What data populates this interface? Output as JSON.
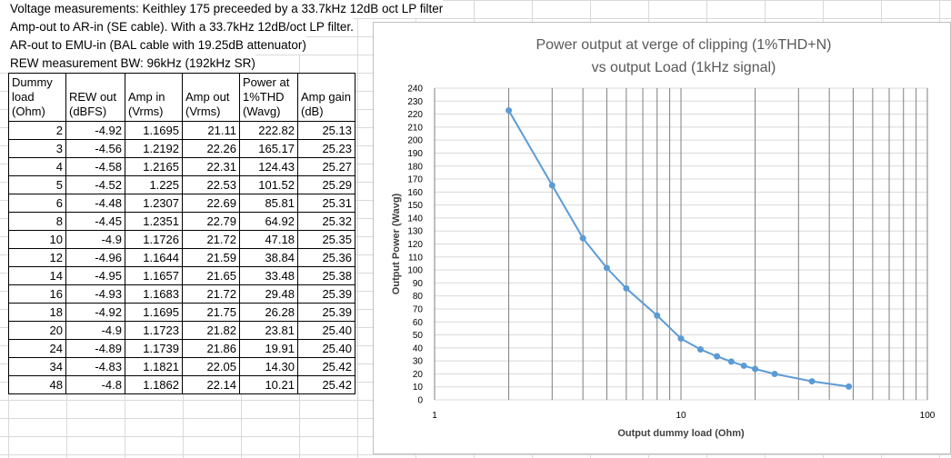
{
  "notes": [
    "Voltage measurements: Keithley 175 preceeded by a 33.7kHz 12dB oct LP filter",
    "Amp-out to AR-in (SE cable). With a 33.7kHz 12dB/oct LP filter.",
    "AR-out to EMU-in (BAL cable with 19.25dB attenuator)",
    "REW measurement BW: 96kHz (192kHz SR)"
  ],
  "table": {
    "headers": [
      "Dummy load (Ohm)",
      "REW out (dBFS)",
      "Amp in (Vrms)",
      "Amp out (Vrms)",
      "Power at 1%THD (Wavg)",
      "Amp gain (dB)"
    ],
    "rows": [
      [
        "2",
        "-4.92",
        "1.1695",
        "21.11",
        "222.82",
        "25.13"
      ],
      [
        "3",
        "-4.56",
        "1.2192",
        "22.26",
        "165.17",
        "25.23"
      ],
      [
        "4",
        "-4.58",
        "1.2165",
        "22.31",
        "124.43",
        "25.27"
      ],
      [
        "5",
        "-4.52",
        "1.225",
        "22.53",
        "101.52",
        "25.29"
      ],
      [
        "6",
        "-4.48",
        "1.2307",
        "22.69",
        "85.81",
        "25.31"
      ],
      [
        "8",
        "-4.45",
        "1.2351",
        "22.79",
        "64.92",
        "25.32"
      ],
      [
        "10",
        "-4.9",
        "1.1726",
        "21.72",
        "47.18",
        "25.35"
      ],
      [
        "12",
        "-4.96",
        "1.1644",
        "21.59",
        "38.84",
        "25.36"
      ],
      [
        "14",
        "-4.95",
        "1.1657",
        "21.65",
        "33.48",
        "25.38"
      ],
      [
        "16",
        "-4.93",
        "1.1683",
        "21.72",
        "29.48",
        "25.39"
      ],
      [
        "18",
        "-4.92",
        "1.1695",
        "21.75",
        "26.28",
        "25.39"
      ],
      [
        "20",
        "-4.9",
        "1.1723",
        "21.82",
        "23.81",
        "25.40"
      ],
      [
        "24",
        "-4.89",
        "1.1739",
        "21.86",
        "19.91",
        "25.40"
      ],
      [
        "34",
        "-4.83",
        "1.1821",
        "22.05",
        "14.30",
        "25.42"
      ],
      [
        "48",
        "-4.8",
        "1.1862",
        "22.14",
        "10.21",
        "25.42"
      ]
    ]
  },
  "chart_data": {
    "type": "scatter",
    "title": "Power output at verge of clipping (1%THD+N)",
    "subtitle": "vs output Load (1kHz signal)",
    "xlabel": "Output dummy load (Ohm)",
    "ylabel": "Output Power (Wavg)",
    "x_scale": "log",
    "xlim": [
      1,
      100
    ],
    "ylim": [
      0,
      240
    ],
    "y_step": 10,
    "x_tick_labels": [
      "1",
      "10",
      "100"
    ],
    "grid": true,
    "line_color": "#5b9bd5",
    "series": [
      {
        "x": [
          2,
          3,
          4,
          5,
          6,
          8,
          10,
          12,
          14,
          16,
          18,
          20,
          24,
          34,
          48
        ],
        "y": [
          222.82,
          165.17,
          124.43,
          101.52,
          85.81,
          64.92,
          47.18,
          38.84,
          33.48,
          29.48,
          26.28,
          23.81,
          19.91,
          14.3,
          10.21
        ]
      }
    ]
  }
}
